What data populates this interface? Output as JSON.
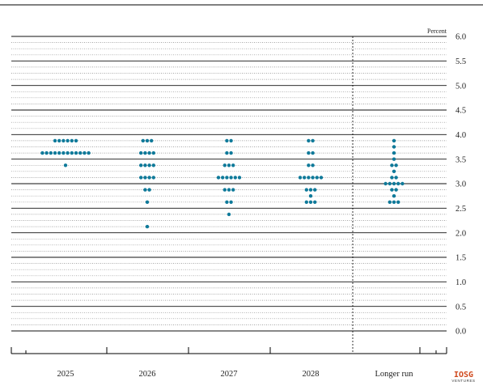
{
  "chart_data": {
    "type": "scatter",
    "style": "dot-plot",
    "unit_label": "Percent",
    "categories": [
      "2025",
      "2026",
      "2027",
      "2028",
      "Longer run"
    ],
    "ylim": [
      0,
      6
    ],
    "y_ticks": [
      "6.0",
      "5.5",
      "5.0",
      "4.5",
      "4.0",
      "3.5",
      "3.0",
      "2.5",
      "2.0",
      "1.5",
      "1.0",
      "0.5",
      "0.0"
    ],
    "dot_color": "#0f7a9a",
    "grid": {
      "minor": "dotted every 0.125",
      "major": "solid every 0.5"
    },
    "series": [
      {
        "category": "2025",
        "points": [
          {
            "y": 3.875,
            "count": 6
          },
          {
            "y": 3.625,
            "count": 12
          },
          {
            "y": 3.375,
            "count": 1
          }
        ]
      },
      {
        "category": "2026",
        "points": [
          {
            "y": 3.875,
            "count": 3
          },
          {
            "y": 3.625,
            "count": 4
          },
          {
            "y": 3.375,
            "count": 4
          },
          {
            "y": 3.125,
            "count": 4
          },
          {
            "y": 2.875,
            "count": 2
          },
          {
            "y": 2.625,
            "count": 1
          },
          {
            "y": 2.125,
            "count": 1
          }
        ]
      },
      {
        "category": "2027",
        "points": [
          {
            "y": 3.875,
            "count": 2
          },
          {
            "y": 3.625,
            "count": 2
          },
          {
            "y": 3.375,
            "count": 3
          },
          {
            "y": 3.125,
            "count": 6
          },
          {
            "y": 2.875,
            "count": 3
          },
          {
            "y": 2.625,
            "count": 2
          },
          {
            "y": 2.375,
            "count": 1
          }
        ]
      },
      {
        "category": "2028",
        "points": [
          {
            "y": 3.875,
            "count": 2
          },
          {
            "y": 3.625,
            "count": 2
          },
          {
            "y": 3.375,
            "count": 2
          },
          {
            "y": 3.125,
            "count": 6
          },
          {
            "y": 2.875,
            "count": 3
          },
          {
            "y": 2.75,
            "count": 1
          },
          {
            "y": 2.625,
            "count": 3
          }
        ]
      },
      {
        "category": "Longer run",
        "points": [
          {
            "y": 3.875,
            "count": 1
          },
          {
            "y": 3.75,
            "count": 1
          },
          {
            "y": 3.625,
            "count": 1
          },
          {
            "y": 3.5,
            "count": 1
          },
          {
            "y": 3.375,
            "count": 2
          },
          {
            "y": 3.25,
            "count": 1
          },
          {
            "y": 3.125,
            "count": 2
          },
          {
            "y": 3.0,
            "count": 5
          },
          {
            "y": 2.875,
            "count": 2
          },
          {
            "y": 2.75,
            "count": 1
          },
          {
            "y": 2.625,
            "count": 3
          }
        ]
      }
    ]
  },
  "watermark": {
    "line1": "IOSG",
    "line2": "VENTURES",
    "color": "#d04a1e"
  }
}
